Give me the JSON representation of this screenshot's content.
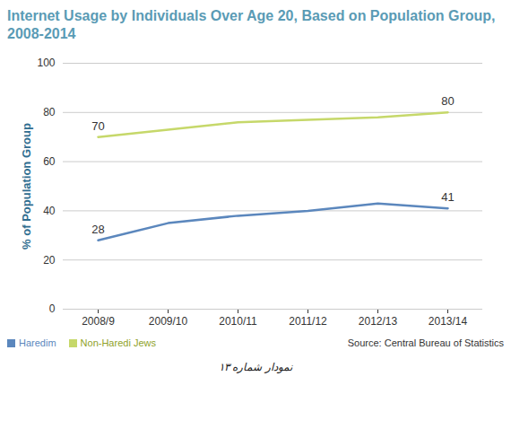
{
  "chart_data": {
    "type": "line",
    "title": "Internet Usage by Individuals Over Age 20, Based on Population Group, 2008-2014",
    "y_label": "% of Population Group",
    "source": "Source: Central Bureau of Statistics",
    "caption": "نمودار شماره ۱۳",
    "categories": [
      "2008/9",
      "2009/10",
      "2010/11",
      "2011/12",
      "2012/13",
      "2013/14"
    ],
    "series": [
      {
        "name": "Haredim",
        "color": "#5b87bd",
        "values": [
          28,
          35,
          38,
          40,
          43,
          41
        ],
        "value_labels": [
          "28",
          null,
          null,
          null,
          null,
          "41"
        ]
      },
      {
        "name": "Non-Haredi Jews",
        "color": "#c6d86a",
        "values": [
          70,
          73,
          76,
          77,
          78,
          80
        ],
        "value_labels": [
          "70",
          null,
          null,
          null,
          null,
          "80"
        ]
      }
    ],
    "ylim": [
      0,
      100
    ],
    "yticks": [
      0,
      20,
      40,
      60,
      80,
      100
    ],
    "grid": true,
    "legend": "bottom",
    "data_labels": true
  }
}
